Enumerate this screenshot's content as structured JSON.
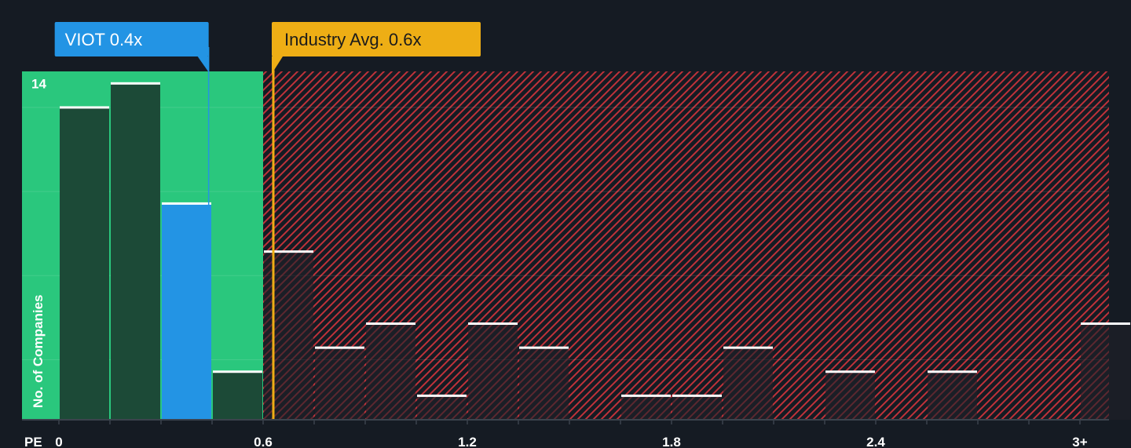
{
  "chart_data": {
    "type": "bar",
    "xlabel": "PE",
    "ylabel": "No. of Companies",
    "x_tick_labels": [
      "0",
      "0.6",
      "1.2",
      "1.8",
      "2.4",
      "3+"
    ],
    "x_tick_values": [
      0,
      0.6,
      1.2,
      1.8,
      2.4,
      3.0
    ],
    "y_tick_labels": [
      "14"
    ],
    "y_tick_values": [
      14
    ],
    "ylim": [
      0,
      14.5
    ],
    "bins": [
      {
        "start": 0.0,
        "end": 0.15,
        "value": 13
      },
      {
        "start": 0.15,
        "end": 0.3,
        "value": 14
      },
      {
        "start": 0.3,
        "end": 0.45,
        "value": 9
      },
      {
        "start": 0.45,
        "end": 0.6,
        "value": 2
      },
      {
        "start": 0.6,
        "end": 0.75,
        "value": 7
      },
      {
        "start": 0.75,
        "end": 0.9,
        "value": 3
      },
      {
        "start": 0.9,
        "end": 1.05,
        "value": 4
      },
      {
        "start": 1.05,
        "end": 1.2,
        "value": 1
      },
      {
        "start": 1.2,
        "end": 1.35,
        "value": 4
      },
      {
        "start": 1.35,
        "end": 1.5,
        "value": 3
      },
      {
        "start": 1.5,
        "end": 1.65,
        "value": 0
      },
      {
        "start": 1.65,
        "end": 1.8,
        "value": 1
      },
      {
        "start": 1.8,
        "end": 1.95,
        "value": 1
      },
      {
        "start": 1.95,
        "end": 2.1,
        "value": 3
      },
      {
        "start": 2.1,
        "end": 2.25,
        "value": 0
      },
      {
        "start": 2.25,
        "end": 2.4,
        "value": 2
      },
      {
        "start": 2.4,
        "end": 2.55,
        "value": 0
      },
      {
        "start": 2.55,
        "end": 2.7,
        "value": 2
      },
      {
        "start": 2.7,
        "end": 2.85,
        "value": 0
      },
      {
        "start": 2.85,
        "end": 3.0,
        "value": 0
      },
      {
        "start": 3.0,
        "end": 3.15,
        "value": 4
      }
    ],
    "highlight_bin_index": 2,
    "fair_range": [
      0,
      0.6
    ],
    "subject": {
      "label": "VIOT 0.4x",
      "value": 0.44
    },
    "industry_avg": {
      "label": "Industry Avg. 0.6x",
      "value": 0.63
    },
    "colors": {
      "background": "#151b23",
      "fair_zone": "#2ac77d",
      "overvalued_hatch": "#c0323a",
      "subject": "#2394e4",
      "industry": "#eeae15",
      "bar_dark": "#1c4a37",
      "bar_cap": "#ffffff",
      "axis": "#3b434d"
    }
  }
}
